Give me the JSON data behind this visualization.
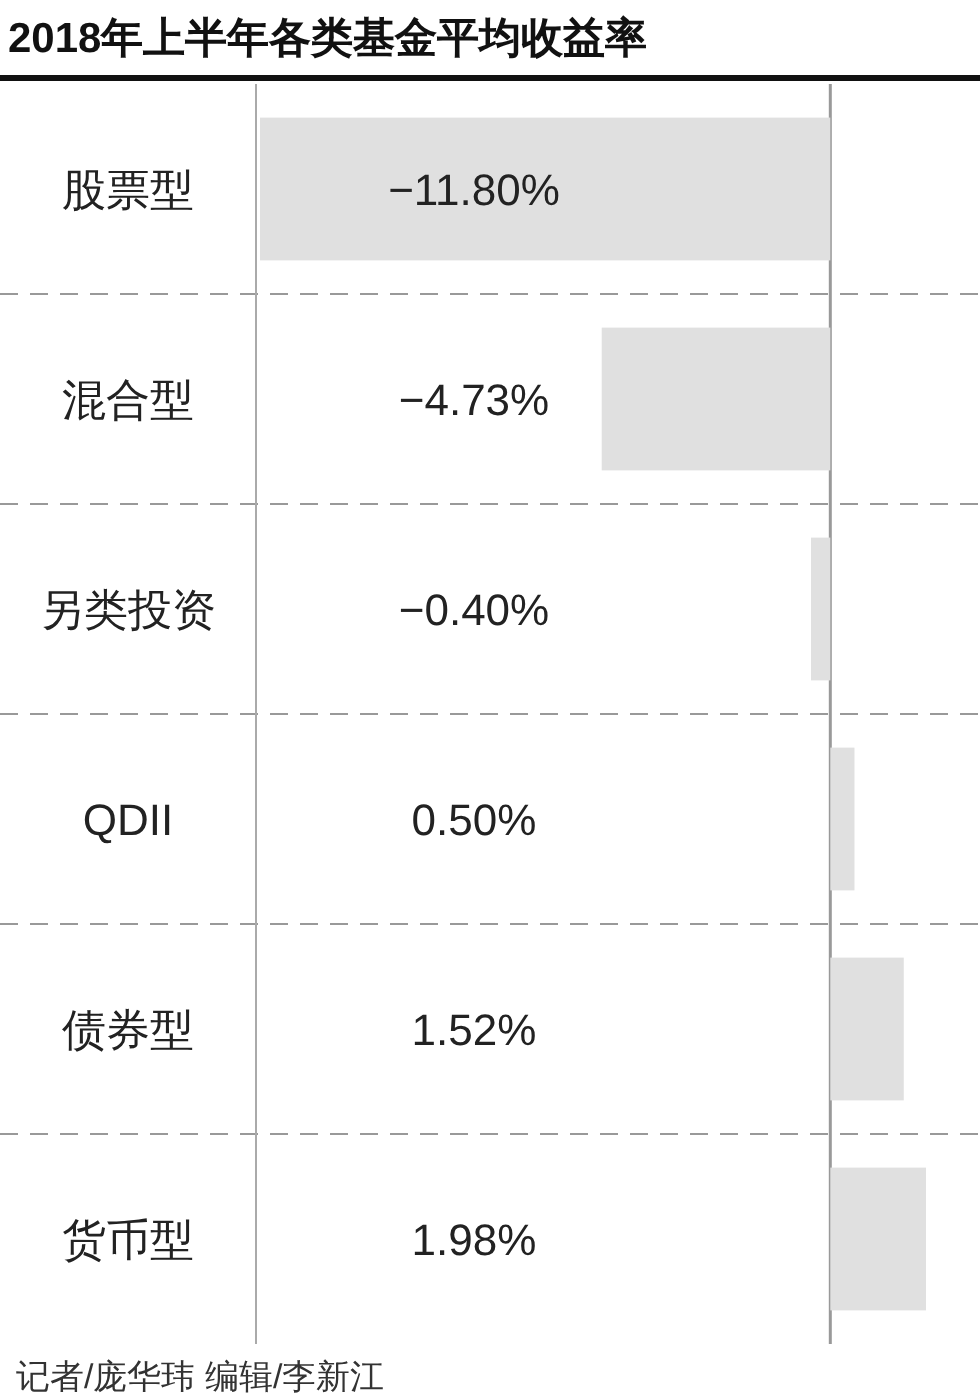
{
  "chart_data": {
    "type": "bar",
    "orientation": "horizontal",
    "title": "2018年上半年各类基金平均收益率",
    "categories": [
      "股票型",
      "混合型",
      "另类投资",
      "QDII",
      "债券型",
      "货币型"
    ],
    "values": [
      -11.8,
      -4.73,
      -0.4,
      0.5,
      1.52,
      1.98
    ],
    "value_labels": [
      "−11.80%",
      "−4.73%",
      "−0.40%",
      "0.50%",
      "1.52%",
      "1.98%"
    ],
    "color": "#e0e0e0",
    "annotations": [
      "记者/庞华玮  编辑/李新江"
    ]
  }
}
